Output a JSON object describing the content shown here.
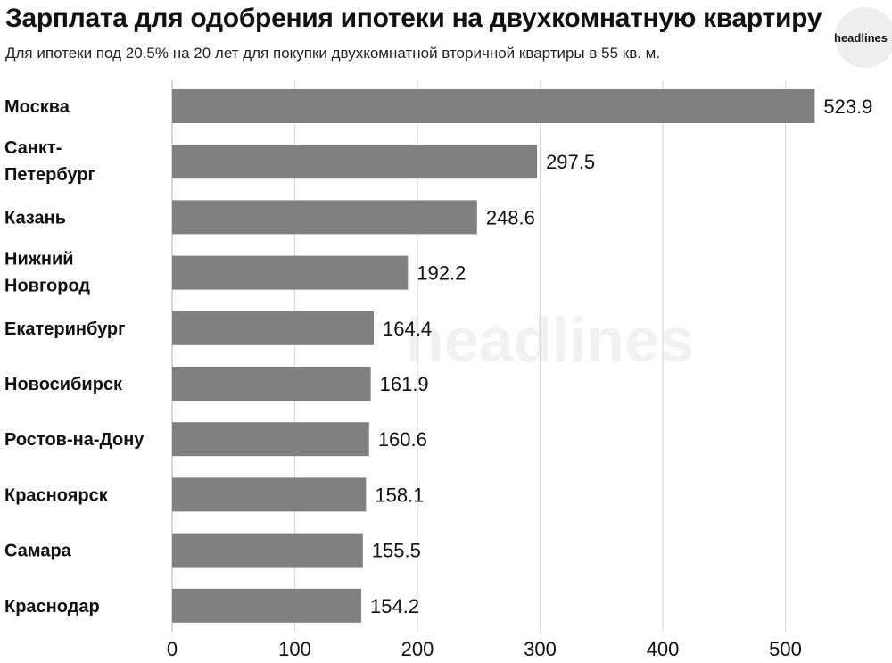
{
  "header": {
    "title": "Зарплата для одобрения ипотеки на двухкомнатную квартиру",
    "subtitle": "Для ипотеки под 20.5% на 20 лет для покупки двухкомнатной вторичной квартиры в 55 кв. м.",
    "logo_text": "headlines"
  },
  "watermark_text": "headlines",
  "colors": {
    "bar": "#808080",
    "grid": "#d9d9d9",
    "axis": "#bfbfbf"
  },
  "chart_data": {
    "type": "bar",
    "orientation": "horizontal",
    "title": "Зарплата для одобрения ипотеки на двухкомнатную квартиру",
    "subtitle": "Для ипотеки под 20.5% на 20 лет для покупки двухкомнатной вторичной квартиры в 55 кв. м.",
    "categories": [
      [
        "Москва"
      ],
      [
        "Санкт-",
        "Петербург"
      ],
      [
        "Казань"
      ],
      [
        "Нижний",
        "Новгород"
      ],
      [
        "Екатеринбург"
      ],
      [
        "Новосибирск"
      ],
      [
        "Ростов-на-Дону"
      ],
      [
        "Красноярск"
      ],
      [
        "Самара"
      ],
      [
        "Краснодар"
      ]
    ],
    "values": [
      523.9,
      297.5,
      248.6,
      192.2,
      164.4,
      161.9,
      160.6,
      158.1,
      155.5,
      154.2
    ],
    "xlim": [
      0,
      560
    ],
    "xticks": [
      0,
      100,
      200,
      300,
      400,
      500
    ],
    "grid": true,
    "xlabel": "",
    "ylabel": ""
  }
}
